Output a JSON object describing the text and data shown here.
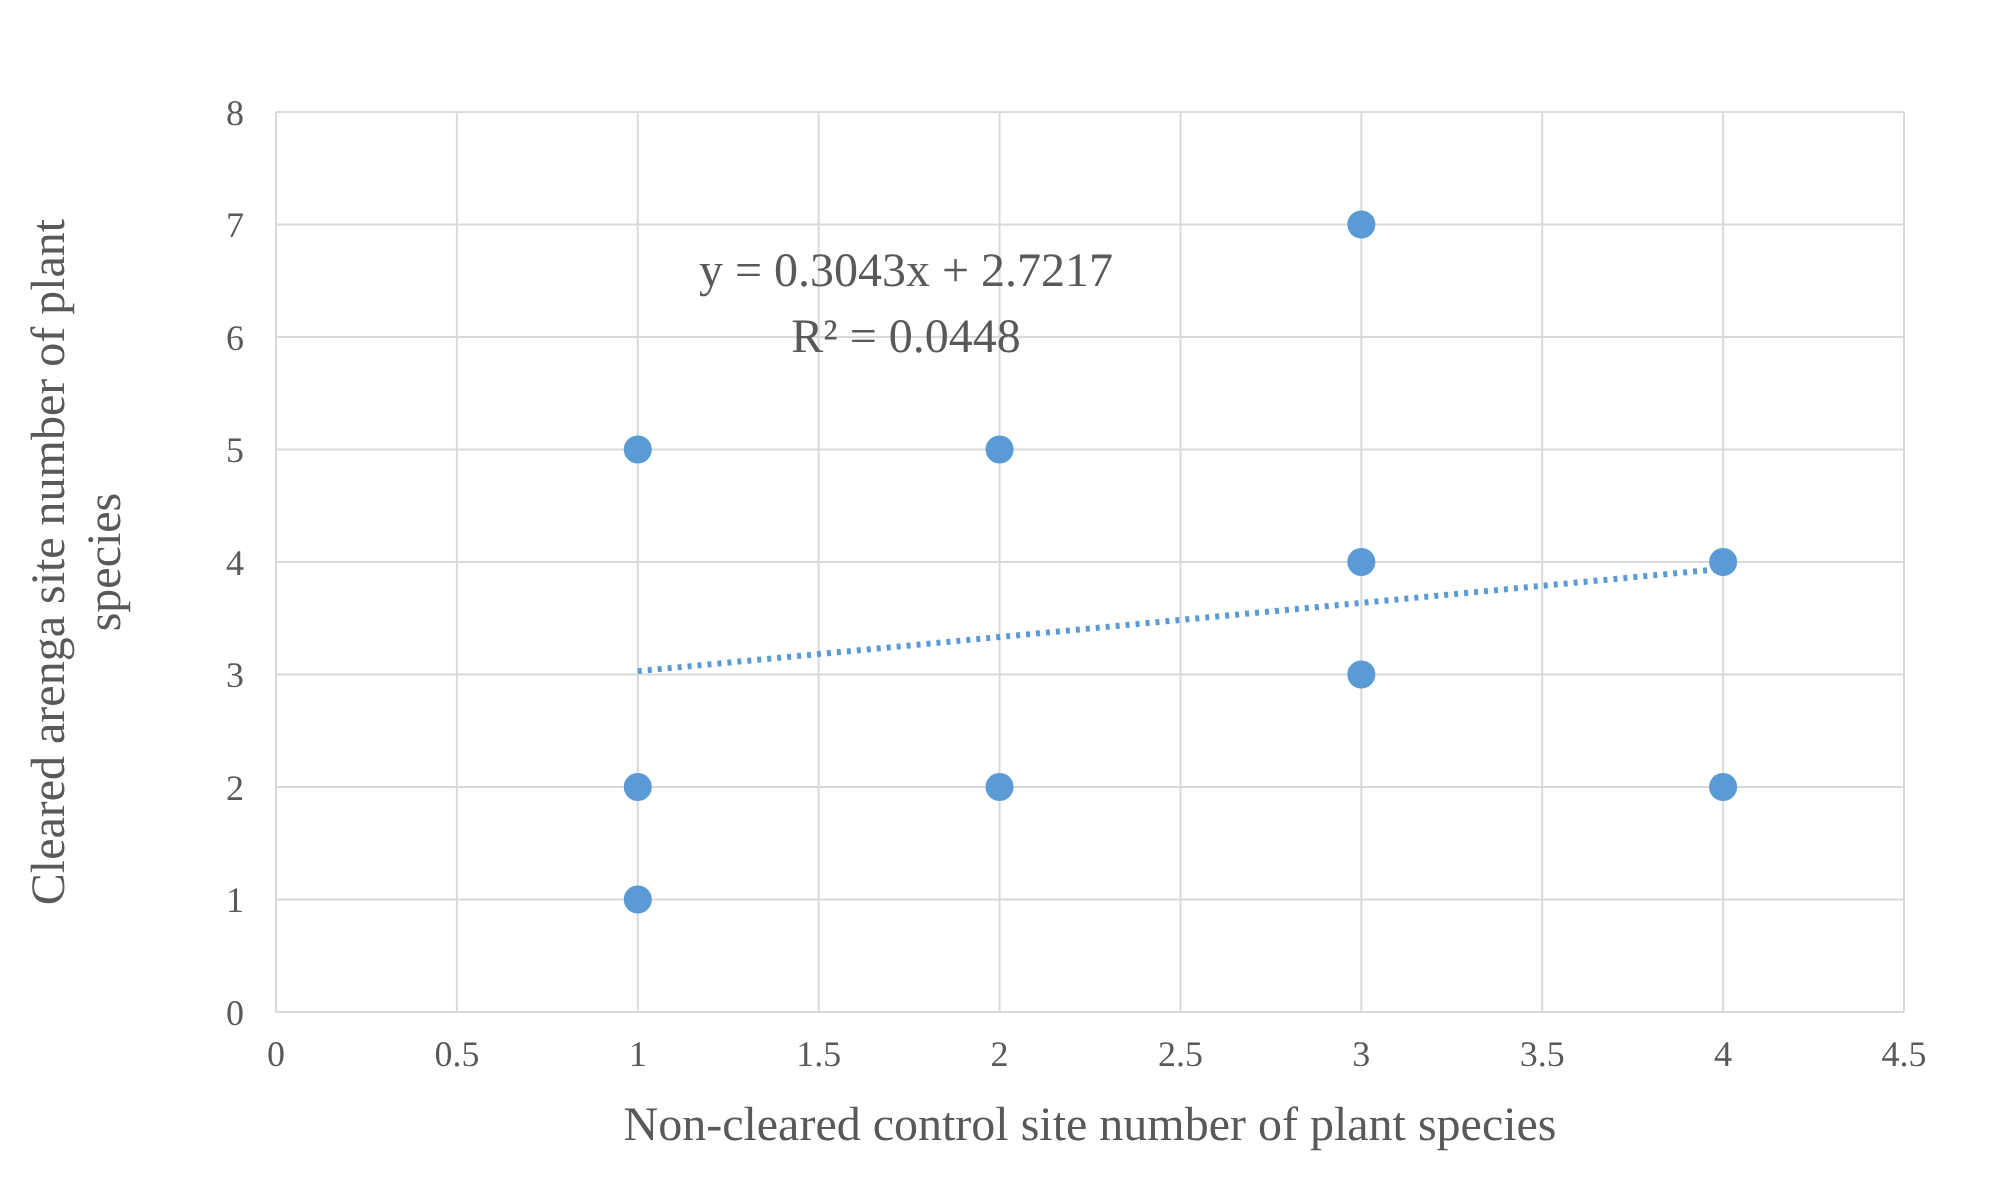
{
  "chart_data": {
    "type": "scatter",
    "xlabel": "Non-cleared control site number of plant species",
    "ylabel": "Cleared arenga site number of plant species",
    "series": [
      {
        "color": "#5b9bd5",
        "marker": "circle",
        "x": [
          1,
          1,
          1,
          2,
          2,
          3,
          3,
          3,
          4,
          4
        ],
        "values": [
          5,
          2,
          1,
          5,
          2,
          7,
          4,
          3,
          4,
          2
        ]
      },
      {
        "type": "line",
        "color": "#5b9bd5",
        "line_style": "dotted",
        "marker": "none",
        "x": [
          1,
          4
        ],
        "values": [
          3.03,
          3.94
        ]
      }
    ],
    "xlim": [
      0,
      4.5
    ],
    "xticks": [
      0,
      0.5,
      1,
      1.5,
      2,
      2.5,
      3,
      3.5,
      4,
      4.5
    ],
    "ylim": [
      0,
      8
    ],
    "yticks": [
      0,
      1,
      2,
      3,
      4,
      5,
      6,
      7,
      8
    ],
    "grid": true,
    "annotations": [
      "y = 0.3043x + 2.7217",
      "R² = 0.0448"
    ]
  }
}
